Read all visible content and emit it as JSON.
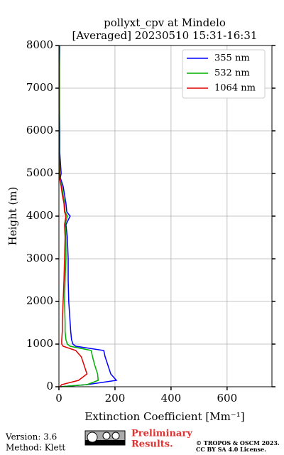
{
  "chart_data": {
    "type": "line",
    "title": "pollyxt_cpv at Mindelo",
    "subtitle": "[Averaged] 20230510 15:31-16:31",
    "xlabel": "Extinction Coefficient [Mm⁻¹]",
    "ylabel": "Height (m)",
    "y": [
      0,
      50,
      150,
      300,
      500,
      700,
      850,
      950,
      1000,
      1100,
      1300,
      1500,
      2000,
      2500,
      3000,
      3500,
      3800,
      4000,
      4100,
      4300,
      4500,
      4700,
      4900,
      5000,
      5500,
      6000,
      6500,
      7000,
      7500,
      8000
    ],
    "series": [
      {
        "name": "355 nm",
        "color": "#0000ff",
        "values": [
          5,
          100,
          205,
          185,
          175,
          165,
          160,
          60,
          50,
          45,
          42,
          40,
          35,
          33,
          33,
          30,
          25,
          40,
          28,
          25,
          20,
          15,
          5,
          8,
          3,
          3,
          2,
          2,
          2,
          3
        ]
      },
      {
        "name": "532 nm",
        "color": "#00b000",
        "values": [
          5,
          100,
          140,
          138,
          128,
          120,
          115,
          40,
          30,
          25,
          22,
          22,
          20,
          22,
          25,
          25,
          22,
          30,
          22,
          20,
          15,
          10,
          3,
          3,
          2,
          2,
          2,
          2,
          2,
          2
        ]
      },
      {
        "name": "1064 nm",
        "color": "#e00000",
        "values": [
          3,
          10,
          70,
          100,
          90,
          80,
          60,
          15,
          10,
          10,
          12,
          12,
          15,
          18,
          20,
          22,
          20,
          25,
          20,
          18,
          12,
          8,
          2,
          2,
          1,
          1,
          1,
          1,
          1,
          1
        ]
      }
    ],
    "xlim": [
      0,
      760
    ],
    "xticks": [
      0,
      200,
      400,
      600
    ],
    "ylim": [
      0,
      8000
    ],
    "yticks": [
      0,
      1000,
      2000,
      3000,
      4000,
      5000,
      6000,
      7000,
      8000
    ],
    "grid": true,
    "legend": "upper right"
  },
  "footer": {
    "version": "Version: 3.6",
    "method": "Method: Klett",
    "preliminary": [
      "Preliminary",
      "Results."
    ],
    "copyright": [
      "© TROPOS & OSCM 2023.",
      "CC BY SA 4.0 License."
    ]
  }
}
